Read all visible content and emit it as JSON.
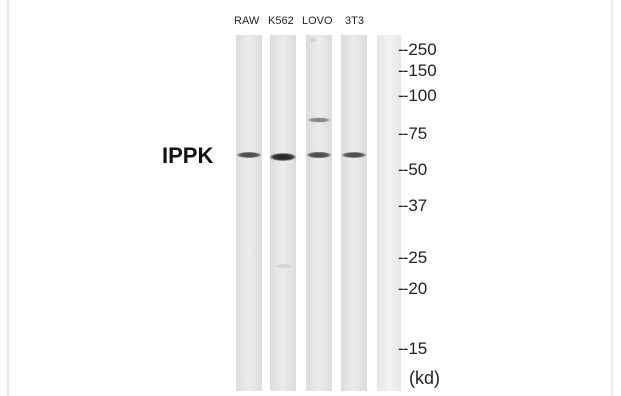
{
  "lanes": [
    {
      "label": "RAW"
    },
    {
      "label": "K562"
    },
    {
      "label": "LOVO"
    },
    {
      "label": "3T3"
    },
    {
      "label": ""
    }
  ],
  "protein_label": "IPPK",
  "markers": [
    {
      "text": "250",
      "prefix": "--"
    },
    {
      "text": "150",
      "prefix": "--"
    },
    {
      "text": "100",
      "prefix": "--"
    },
    {
      "text": "75",
      "prefix": "--"
    },
    {
      "text": "50",
      "prefix": "--"
    },
    {
      "text": "37",
      "prefix": "--"
    },
    {
      "text": "25",
      "prefix": "--"
    },
    {
      "text": "20",
      "prefix": "--"
    },
    {
      "text": "15",
      "prefix": "--"
    }
  ],
  "unit_label": "(kd)",
  "colors": {
    "lane_fill": "#e9e9ea",
    "band": "#2a2a2a",
    "faint_band": "#8a8a8a"
  }
}
